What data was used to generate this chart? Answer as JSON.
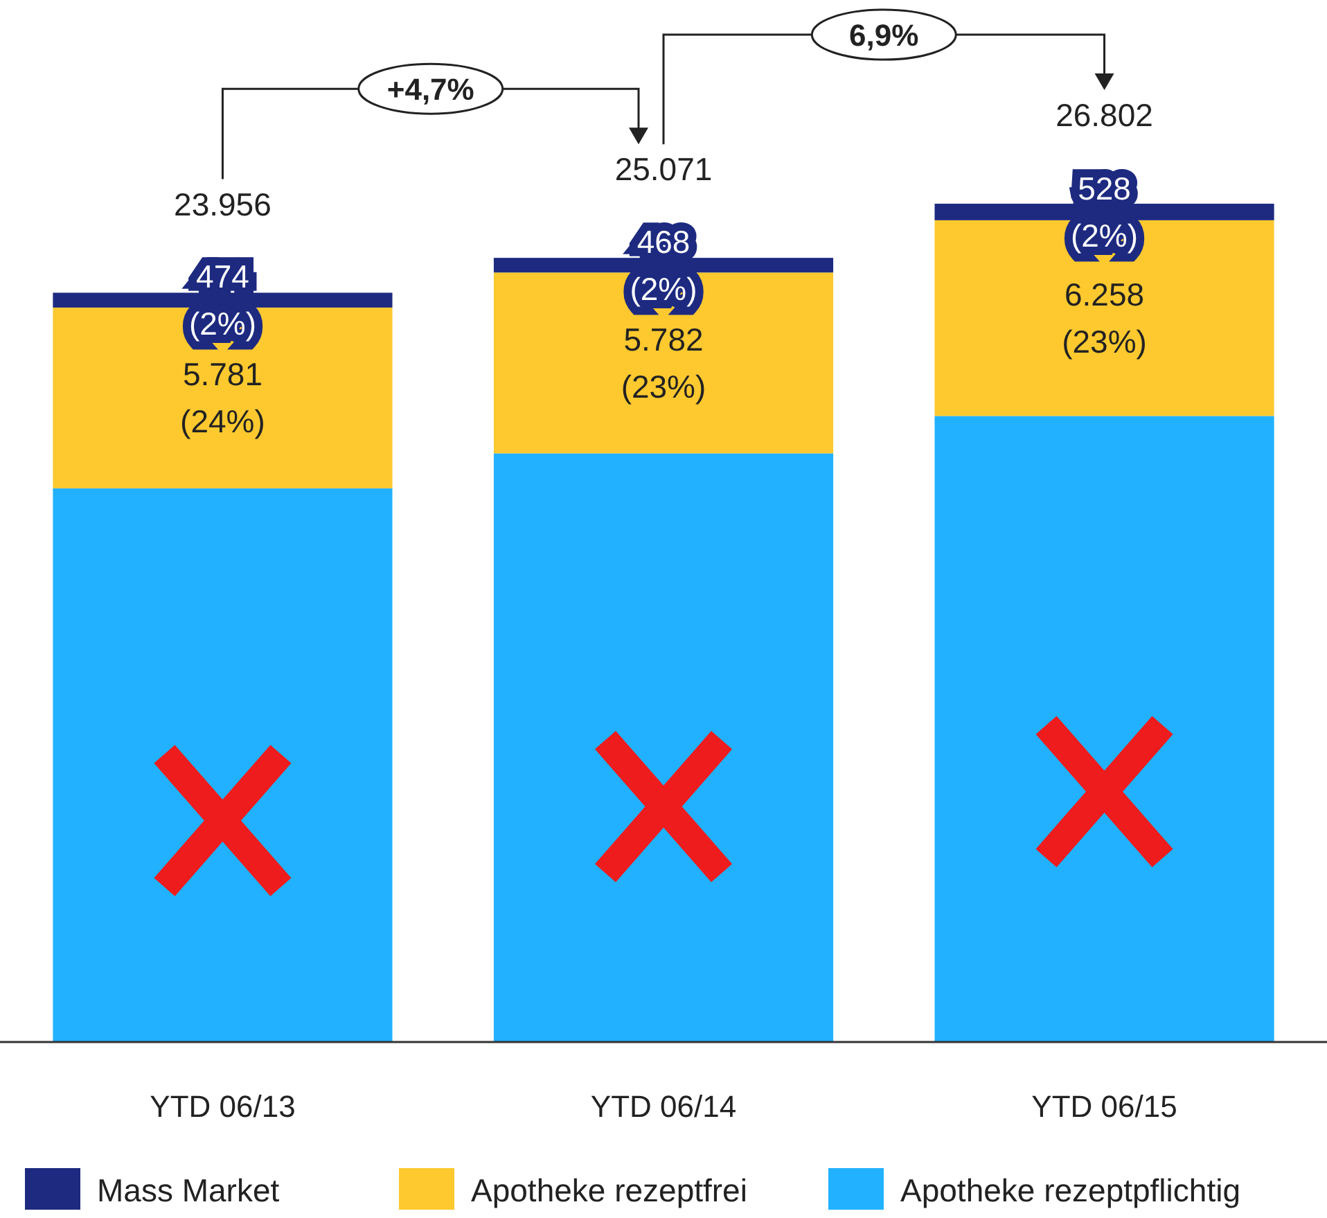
{
  "chart_data": {
    "type": "bar",
    "stacked": true,
    "categories": [
      "YTD 06/13",
      "YTD 06/14",
      "YTD 06/15"
    ],
    "series": [
      {
        "name": "Apotheke rezeptpflichtig",
        "color": "#22b1fe",
        "values": [
          17701,
          18821,
          20016
        ],
        "value_labels": [
          null,
          null,
          null
        ]
      },
      {
        "name": "Apotheke rezeptfrei",
        "color": "#fdc92f",
        "values": [
          5781,
          5782,
          6258
        ],
        "value_labels": [
          "5.781\n(24%)",
          "5.782\n(23%)",
          "6.258\n(23%)"
        ]
      },
      {
        "name": "Mass Market",
        "color": "#1d2a80",
        "values": [
          474,
          468,
          528
        ],
        "value_labels": [
          "474\n(2%)",
          "468\n(2%)",
          "528\n(2%)"
        ]
      }
    ],
    "totals": [
      "23.956",
      "25.071",
      "26.802"
    ],
    "annotations": [
      "+4,7%",
      "6,9%"
    ],
    "legend": "bottom"
  }
}
